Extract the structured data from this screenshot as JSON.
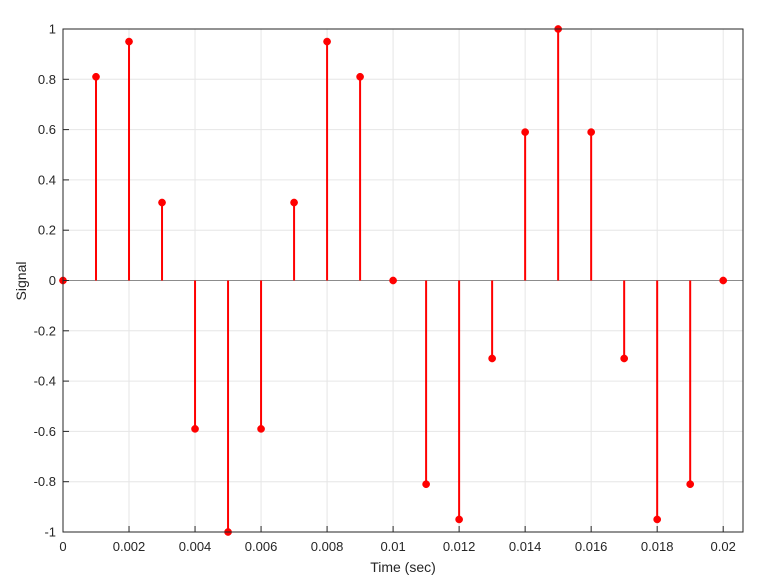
{
  "chart_data": {
    "type": "stem",
    "xlabel": "Time (sec)",
    "ylabel": "Signal",
    "xlim": [
      0,
      0.0206
    ],
    "ylim": [
      -1,
      1
    ],
    "grid": true,
    "x_ticks": [
      0,
      0.002,
      0.004,
      0.006,
      0.008,
      0.01,
      0.012,
      0.014,
      0.016,
      0.018,
      0.02
    ],
    "x_tick_labels": [
      "0",
      "0.002",
      "0.004",
      "0.006",
      "0.008",
      "0.01",
      "0.012",
      "0.014",
      "0.016",
      "0.018",
      "0.02"
    ],
    "y_ticks": [
      -1,
      -0.8,
      -0.6,
      -0.4,
      -0.2,
      0,
      0.2,
      0.4,
      0.6,
      0.8,
      1
    ],
    "y_tick_labels": [
      "-1",
      "-0.8",
      "-0.6",
      "-0.4",
      "-0.2",
      "0",
      "0.2",
      "0.4",
      "0.6",
      "0.8",
      "1"
    ],
    "series": [
      {
        "color": "#ff0000",
        "x": [
          0,
          0.001,
          0.002,
          0.003,
          0.004,
          0.005,
          0.006,
          0.007,
          0.008,
          0.009,
          0.01,
          0.011,
          0.012,
          0.013,
          0.014,
          0.015,
          0.016,
          0.017,
          0.018,
          0.019,
          0.02
        ],
        "y": [
          0,
          0.81,
          0.95,
          0.31,
          -0.59,
          -1.0,
          -0.59,
          0.31,
          0.95,
          0.81,
          0,
          -0.81,
          -0.95,
          -0.31,
          0.59,
          1.0,
          0.59,
          -0.31,
          -0.95,
          -0.81,
          0
        ]
      }
    ]
  }
}
